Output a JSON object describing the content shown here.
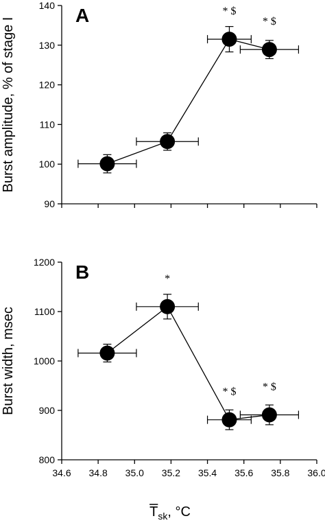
{
  "chart_data": [
    {
      "type": "scatter",
      "panel_label": "A",
      "ylabel": "Burst amplitude, % of stage I",
      "ylim": [
        90,
        140
      ],
      "yticks": [
        90,
        100,
        110,
        120,
        130,
        140
      ],
      "xlim": [
        34.6,
        36.0
      ],
      "connected": true,
      "points": [
        {
          "x": 34.85,
          "y": 100.1,
          "xerr": 0.16,
          "yerr": 2.3,
          "annotation": ""
        },
        {
          "x": 35.18,
          "y": 105.7,
          "xerr": 0.17,
          "yerr": 2.2,
          "annotation": ""
        },
        {
          "x": 35.52,
          "y": 131.5,
          "xerr": 0.12,
          "yerr": 3.2,
          "annotation": "* $"
        },
        {
          "x": 35.74,
          "y": 128.9,
          "xerr": 0.16,
          "yerr": 2.3,
          "annotation": "* $"
        }
      ]
    },
    {
      "type": "scatter",
      "panel_label": "B",
      "ylabel": "Burst width, msec",
      "ylim": [
        800,
        1200
      ],
      "yticks": [
        800,
        900,
        1000,
        1100,
        1200
      ],
      "xlim": [
        34.6,
        36.0
      ],
      "xticks": [
        "34.6",
        "34.8",
        "35.0",
        "35.2",
        "35.4",
        "35.6",
        "35.8",
        "36.0"
      ],
      "xlabel": {
        "main": "T",
        "sub": "sk",
        "unit": ", °C"
      },
      "connected": true,
      "points": [
        {
          "x": 34.85,
          "y": 1016,
          "xerr": 0.16,
          "yerr": 18,
          "annotation": ""
        },
        {
          "x": 35.18,
          "y": 1110,
          "xerr": 0.17,
          "yerr": 25,
          "annotation": "*"
        },
        {
          "x": 35.52,
          "y": 881,
          "xerr": 0.12,
          "yerr": 20,
          "annotation": "* $"
        },
        {
          "x": 35.74,
          "y": 891,
          "xerr": 0.16,
          "yerr": 20,
          "annotation": "* $"
        }
      ]
    }
  ]
}
